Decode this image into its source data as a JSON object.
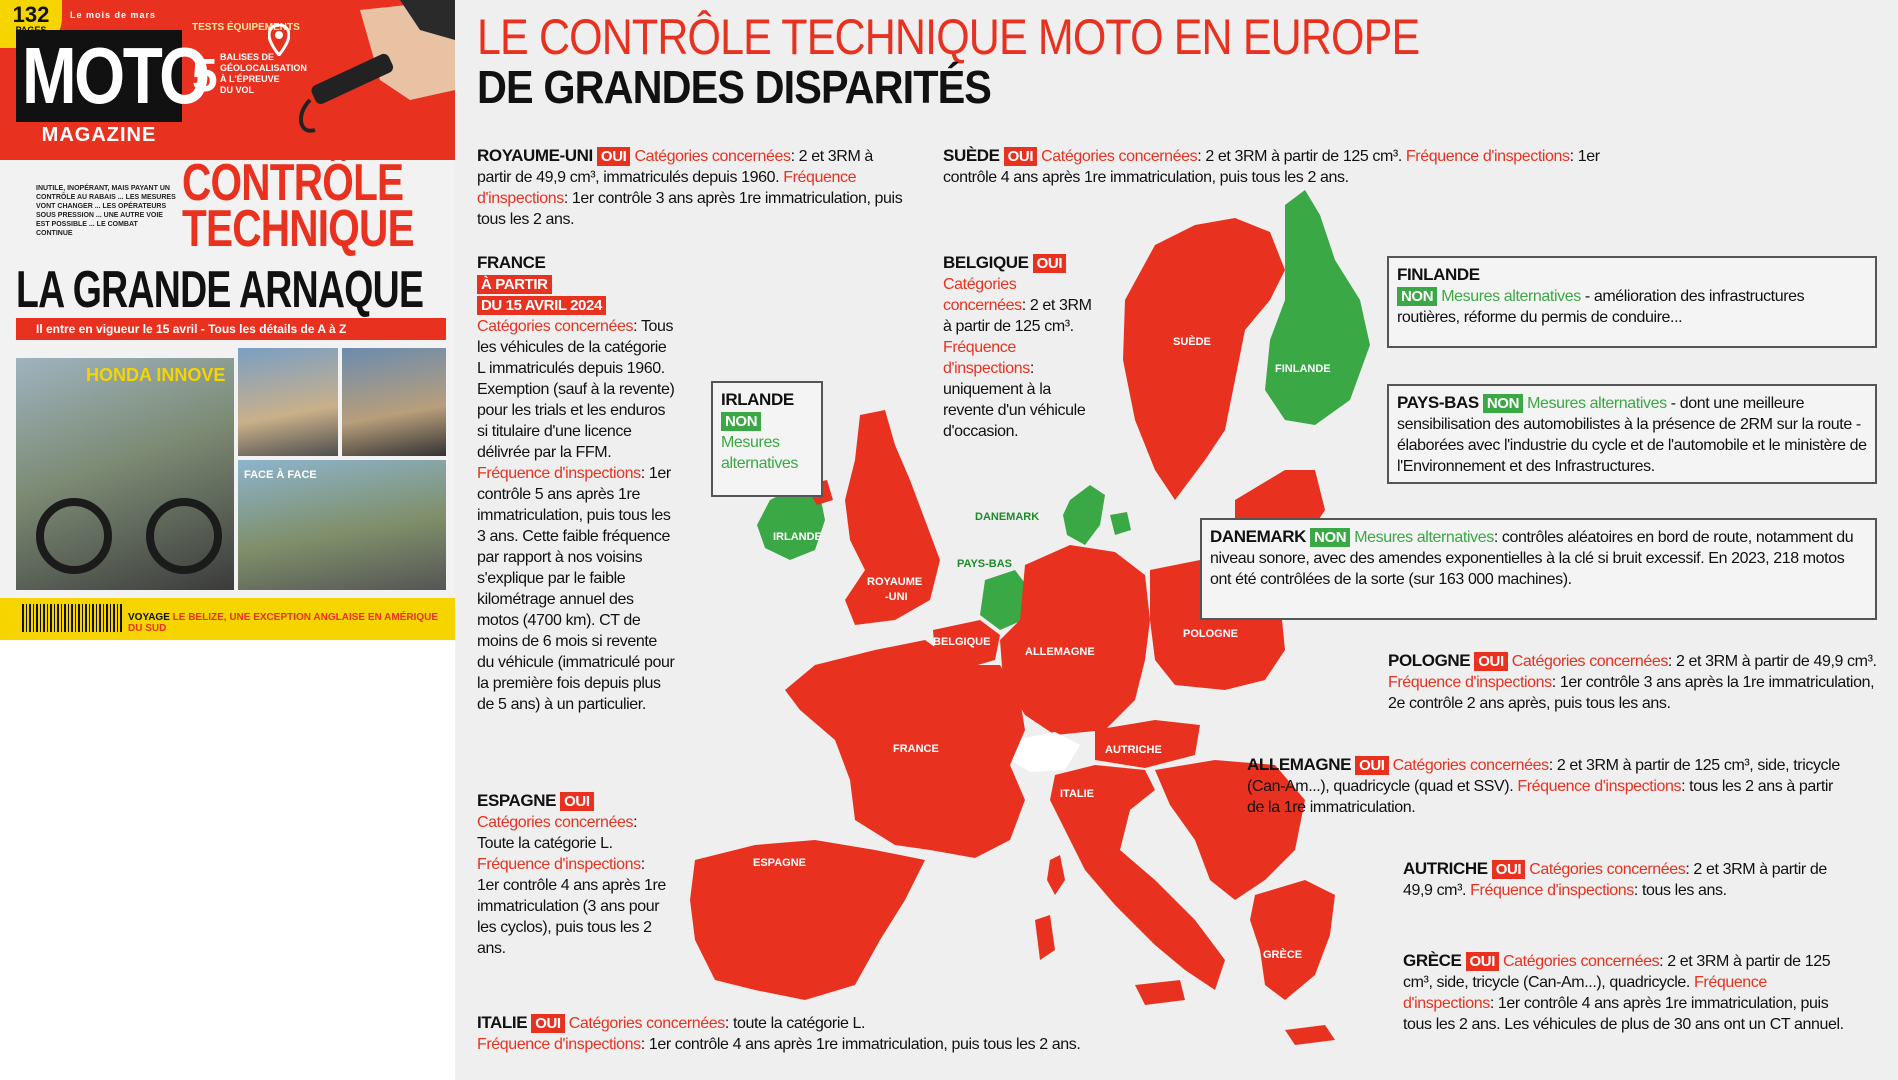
{
  "cover": {
    "pages_number": "132",
    "pages_label": "PAGES",
    "edition": "Le mois de mars",
    "logo_main": "MOTO",
    "logo_sub": "MAGAZINE",
    "teaser_kicker": "TESTS ÉQUIPEMENTS",
    "teaser_big": "5",
    "teaser_text": "BALISES DE GÉOLOCALISATION À L'ÉPREUVE DU VOL",
    "side_text": "INUTILE, INOPÉRANT, MAIS PAYANT UN CONTRÔLE AU RABAIS ... LES MESURES VONT CHANGER ... LES OPÉRATEURS SOUS PRESSION ... UNE AUTRE VOIE EST POSSIBLE ... LE COMBAT CONTINUE",
    "headline_red": "CONTRÔLE TECHNIQUE",
    "headline_black": "LA GRANDE ARNAQUE",
    "strip": "Il entre en vigueur le 15 avril - Tous les détails de A à Z",
    "photo_caption_1": "HONDA INNOVE",
    "photo_caption_4": "FACE À FACE",
    "footer_label": "VOYAGE",
    "footer_text": "LE BELIZE, UNE EXCEPTION ANGLAISE EN AMÉRIQUE DU SUD"
  },
  "infographic": {
    "title_line1": "LE CONTRÔLE TECHNIQUE MOTO EN EUROPE",
    "title_line2": "DE GRANDES DISPARITÉS",
    "labels": {
      "oui": "OUI",
      "non": "NON",
      "cat": "Catégories concernées",
      "freq": "Fréquence d'inspections",
      "alt": "Mesures alternatives"
    },
    "royaume_uni": {
      "name": "ROYAUME-UNI",
      "cat": ": 2 et 3RM à partir de 49,9 cm³, immatriculés depuis 1960.",
      "freq": ": 1er contrôle 3 ans après 1re immatriculation, puis tous les 2 ans."
    },
    "suede": {
      "name": "SUÈDE",
      "cat": ": 2 et 3RM à partir de 125 cm³.",
      "freq": ": 1er contrôle 4 ans après 1re immatriculation, puis tous les 2 ans."
    },
    "france": {
      "name": "FRANCE",
      "date_1": "À PARTIR",
      "date_2": "DU 15 AVRIL 2024",
      "cat": ": Tous les véhicules de la catégorie L immatriculés depuis 1960. Exemption (sauf à la revente) pour les trials et les enduros si titulaire d'une licence délivrée par la FFM.",
      "freq": ": 1er contrôle 5 ans après 1re immatriculation, puis tous les 3 ans. Cette faible fréquence par rapport à nos voisins s'explique par le faible kilométrage annuel des motos (4700 km). CT de moins de 6 mois si revente du véhicule (immatriculé pour la première fois depuis plus de 5 ans) à un particulier."
    },
    "belgique": {
      "name": "BELGIQUE",
      "cat": ": 2 et 3RM à partir de 125 cm³.",
      "freq": ": uniquement à la revente d'un véhicule d'occasion."
    },
    "irlande": {
      "name": "IRLANDE",
      "alt": "Mesures alternatives"
    },
    "finlande": {
      "name": "FINLANDE",
      "text": " - amélioration des infrastructures routières, réforme du permis de conduire..."
    },
    "pays_bas": {
      "name": "PAYS-BAS",
      "text": " - dont une meilleure sensibilisation des automobilistes à la présence de 2RM sur la route - élaborées avec l'industrie du cycle et de l'automobile et le ministère de l'Environnement et des Infrastructures."
    },
    "danemark": {
      "name": "DANEMARK",
      "text": ": contrôles aléatoires en bord de route, notamment du niveau sonore, avec des amendes exponentielles à la clé si bruit excessif. En 2023, 218 motos ont été contrôlées de la sorte (sur 163 000 machines)."
    },
    "espagne": {
      "name": "ESPAGNE",
      "cat": ": Toute la catégorie L.",
      "freq": ": 1er contrôle 4 ans après 1re immatriculation (3 ans pour les cyclos), puis tous les 2 ans."
    },
    "pologne": {
      "name": "POLOGNE",
      "cat": ": 2 et 3RM à partir de 49,9 cm³.",
      "freq": ": 1er contrôle 3 ans après la 1re immatriculation, 2e contrôle 2 ans après, puis tous les ans."
    },
    "allemagne": {
      "name": "ALLEMAGNE",
      "cat": ": 2 et 3RM à partir de 125 cm³, side, tricycle (Can-Am...), quadricycle (quad et SSV).",
      "freq": ": tous les 2 ans à partir de la 1re immatriculation."
    },
    "autriche": {
      "name": "AUTRICHE",
      "cat": ": 2 et 3RM à partir de 49,9 cm³.",
      "freq": ": tous les ans."
    },
    "grece": {
      "name": "GRÈCE",
      "cat": ": 2 et 3RM à partir de 125 cm³, side, tricycle (Can-Am...), quadricycle.",
      "freq": ": 1er contrôle 4 ans après 1re immatriculation, puis tous les 2 ans. Les véhicules de plus de 30 ans ont un CT annuel."
    },
    "italie": {
      "name": "ITALIE",
      "cat": ": toute la catégorie L.",
      "freq": ": 1er contrôle 4 ans après 1re immatriculation, puis tous les 2 ans."
    },
    "map_labels": {
      "suede": "SUÈDE",
      "finlande": "FINLANDE",
      "irlande": "IRLANDE",
      "royaume_uni_1": "ROYAUME",
      "royaume_uni_2": "-UNI",
      "danemark": "DANEMARK",
      "pays_bas": "PAYS-BAS",
      "belgique": "BELGIQUE",
      "allemagne": "ALLEMAGNE",
      "pologne": "POLOGNE",
      "france": "FRANCE",
      "autriche": "AUTRICHE",
      "italie": "ITALIE",
      "espagne": "ESPAGNE",
      "grece": "GRÈCE"
    },
    "colors": {
      "oui": "#e8321f",
      "non": "#3aa844",
      "no_data": "#ffffff",
      "background": "#efefef"
    }
  }
}
